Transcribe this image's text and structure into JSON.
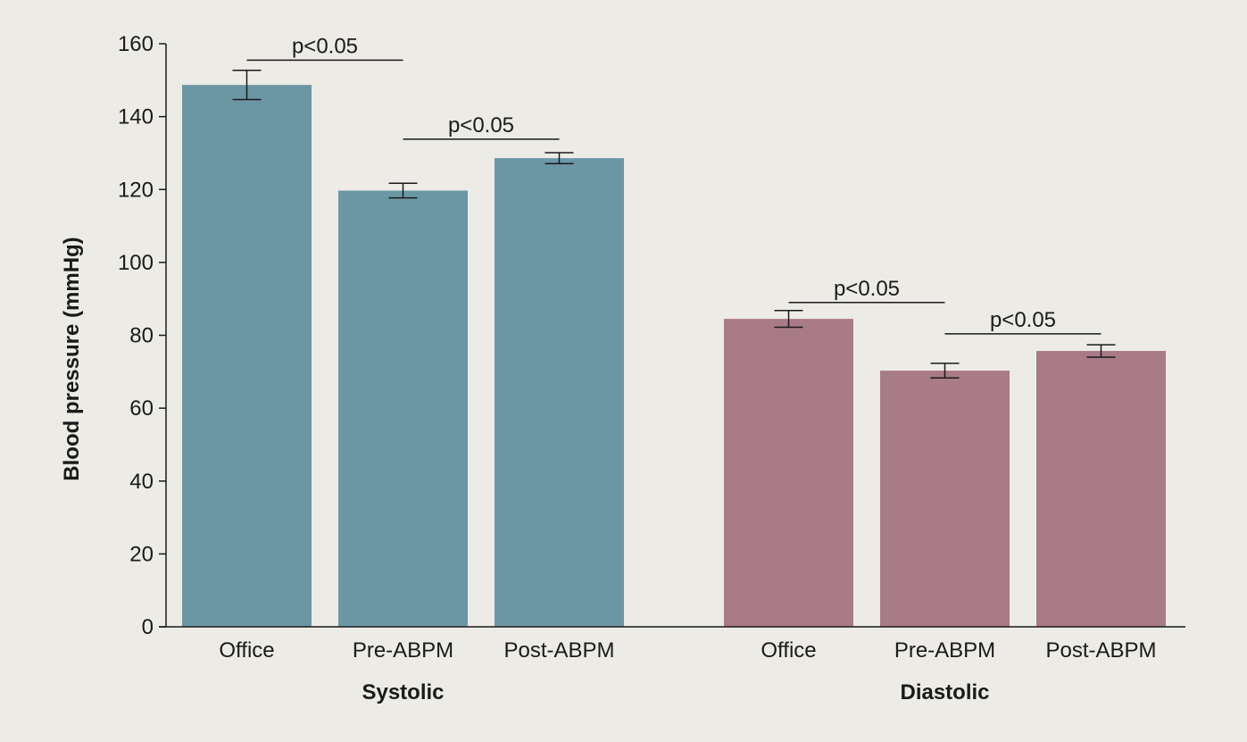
{
  "chart_data": {
    "type": "bar",
    "ylabel": "Blood pressure (mmHg)",
    "xlabel": "",
    "title": "",
    "ylim": [
      0,
      160
    ],
    "yticks": [
      0,
      20,
      40,
      60,
      80,
      100,
      120,
      140,
      160
    ],
    "grid": false,
    "groups": [
      {
        "name": "Systolic",
        "color": "#6b97a5",
        "categories": [
          "Office",
          "Pre-ABPM",
          "Post-ABPM"
        ],
        "values": [
          148.7,
          119.7,
          128.6
        ],
        "errors": [
          4.0,
          2.0,
          1.5
        ],
        "significance": [
          {
            "from": 0,
            "to": 1,
            "label": "p<0.05",
            "y": 155.5
          },
          {
            "from": 1,
            "to": 2,
            "label": "p<0.05",
            "y": 133.8
          }
        ]
      },
      {
        "name": "Diastolic",
        "color": "#a97a87",
        "categories": [
          "Office",
          "Pre-ABPM",
          "Post-ABPM"
        ],
        "values": [
          84.5,
          70.3,
          75.7
        ],
        "errors": [
          2.3,
          2.0,
          1.7
        ],
        "significance": [
          {
            "from": 0,
            "to": 1,
            "label": "p<0.05",
            "y": 89.0
          },
          {
            "from": 1,
            "to": 2,
            "label": "p<0.05",
            "y": 80.4
          }
        ]
      }
    ]
  }
}
